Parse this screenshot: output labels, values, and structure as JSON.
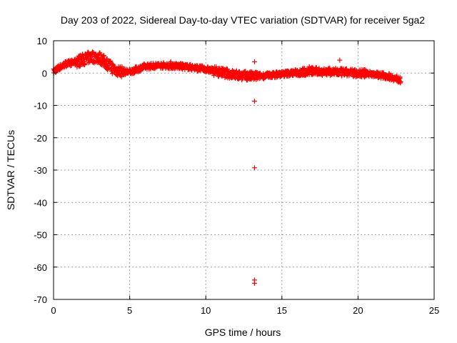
{
  "chart_data": {
    "type": "scatter",
    "title": "Day 203 of 2022, Sidereal Day-to-day VTEC variation (SDTVAR) for receiver 5ga2",
    "xlabel": "GPS time / hours",
    "ylabel": "SDTVAR / TECUs",
    "xlim": [
      0,
      25
    ],
    "ylim": [
      -70,
      10
    ],
    "x_ticks": [
      0,
      5,
      10,
      15,
      20,
      25
    ],
    "y_ticks": [
      10,
      0,
      -10,
      -20,
      -30,
      -40,
      -50,
      -60,
      -70
    ],
    "grid": true,
    "marker": "+",
    "series_color": "#ff0000",
    "trend": [
      {
        "x": 0.0,
        "y": 0.5
      },
      {
        "x": 0.3,
        "y": 1.5
      },
      {
        "x": 0.8,
        "y": 2.8
      },
      {
        "x": 1.5,
        "y": 3.5
      },
      {
        "x": 2.0,
        "y": 4.3
      },
      {
        "x": 2.5,
        "y": 5.0
      },
      {
        "x": 3.0,
        "y": 4.8
      },
      {
        "x": 3.5,
        "y": 3.0
      },
      {
        "x": 4.0,
        "y": 1.0
      },
      {
        "x": 4.5,
        "y": 0.5
      },
      {
        "x": 5.0,
        "y": 0.3
      },
      {
        "x": 5.5,
        "y": 1.2
      },
      {
        "x": 6.0,
        "y": 2.0
      },
      {
        "x": 7.0,
        "y": 2.4
      },
      {
        "x": 8.0,
        "y": 2.2
      },
      {
        "x": 9.0,
        "y": 1.8
      },
      {
        "x": 10.0,
        "y": 1.2
      },
      {
        "x": 11.0,
        "y": 0.2
      },
      {
        "x": 12.0,
        "y": -0.6
      },
      {
        "x": 13.0,
        "y": -1.0
      },
      {
        "x": 14.0,
        "y": -0.8
      },
      {
        "x": 15.0,
        "y": -0.3
      },
      {
        "x": 16.0,
        "y": 0.2
      },
      {
        "x": 17.0,
        "y": 0.6
      },
      {
        "x": 18.0,
        "y": 0.4
      },
      {
        "x": 19.0,
        "y": 0.2
      },
      {
        "x": 20.0,
        "y": 0.0
      },
      {
        "x": 21.0,
        "y": -0.3
      },
      {
        "x": 22.0,
        "y": -1.0
      },
      {
        "x": 22.8,
        "y": -2.2
      }
    ],
    "highlights": [
      {
        "x": 13.2,
        "y": 3.5
      },
      {
        "x": 13.2,
        "y": -8.7
      },
      {
        "x": 13.2,
        "y": -29.3
      },
      {
        "x": 13.2,
        "y": -64.0
      },
      {
        "x": 13.2,
        "y": -65.0
      },
      {
        "x": 18.8,
        "y": 4.0
      },
      {
        "x": 7.7,
        "y": 3.5
      },
      {
        "x": 16.8,
        "y": 2.0
      }
    ]
  }
}
